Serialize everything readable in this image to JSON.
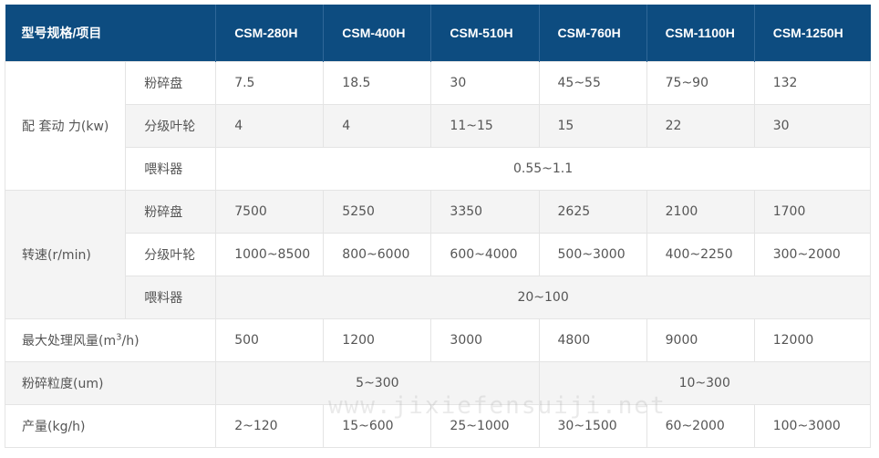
{
  "header": {
    "label": "型号规格/项目",
    "models": [
      "CSM-280H",
      "CSM-400H",
      "CSM-510H",
      "CSM-760H",
      "CSM-1100H",
      "CSM-1250H"
    ]
  },
  "power": {
    "label": "配 套动 力(kw)",
    "crusher": {
      "label": "粉碎盘",
      "values": [
        "7.5",
        "18.5",
        "30",
        "45~55",
        "75~90",
        "132"
      ]
    },
    "classifier": {
      "label": "分级叶轮",
      "values": [
        "4",
        "4",
        "11~15",
        "15",
        "22",
        "30"
      ]
    },
    "feeder": {
      "label": "喂料器",
      "value": "0.55~1.1"
    }
  },
  "speed": {
    "label": "转速(r/min)",
    "crusher": {
      "label": "粉碎盘",
      "values": [
        "7500",
        "5250",
        "3350",
        "2625",
        "2100",
        "1700"
      ]
    },
    "classifier": {
      "label": "分级叶轮",
      "values": [
        "1000~8500",
        "800~6000",
        "600~4000",
        "500~3000",
        "400~2250",
        "300~2000"
      ]
    },
    "feeder": {
      "label": "喂料器",
      "value": "20~100"
    }
  },
  "airflow": {
    "label_pre": "最大处理风量(m",
    "label_sup": "3",
    "label_post": "/h)",
    "values": [
      "500",
      "1200",
      "3000",
      "4800",
      "9000",
      "12000"
    ]
  },
  "fineness": {
    "label": "粉碎粒度(um)",
    "values": [
      "5~300",
      "10~300"
    ]
  },
  "output": {
    "label": "产量(kg/h)",
    "values": [
      "2~120",
      "15~600",
      "25~1000",
      "30~1500",
      "60~2000",
      "100~3000"
    ]
  },
  "watermark": "www.jixiefensuiji.net"
}
